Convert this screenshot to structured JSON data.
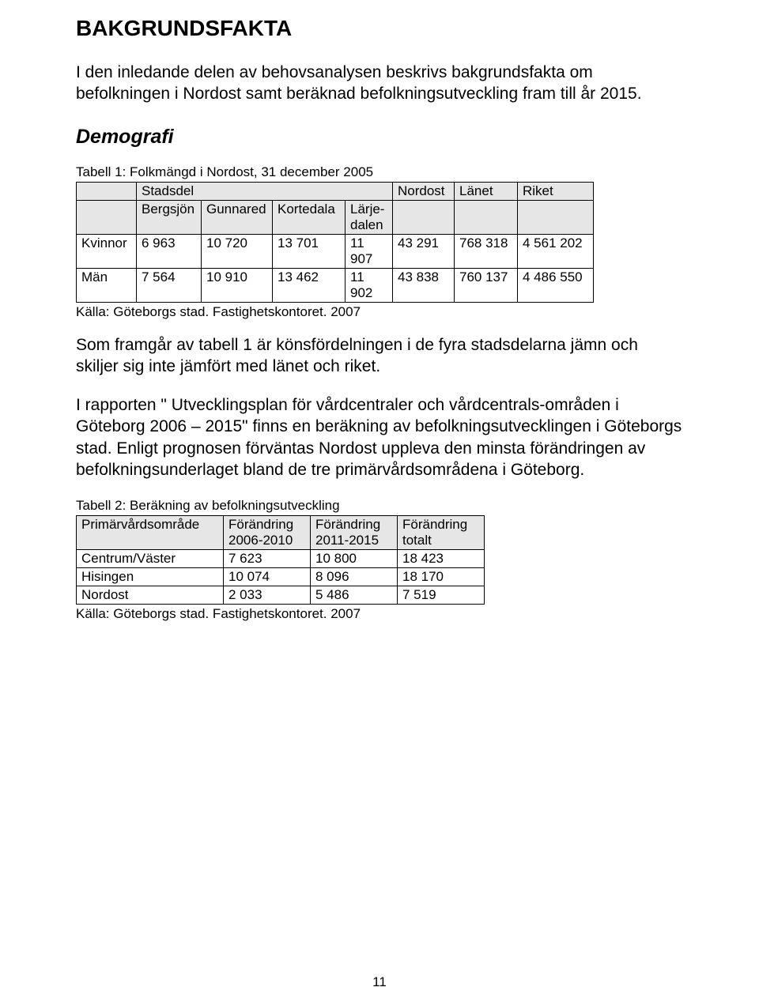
{
  "title": "BAKGRUNDSFAKTA",
  "intro": "I den inledande delen av behovsanalysen beskrivs bakgrundsfakta om befolkningen i Nordost samt beräknad befolkningsutveckling fram till år 2015.",
  "section_demografi": "Demografi",
  "table1": {
    "caption": "Tabell 1: Folkmängd i Nordost, 31 december 2005",
    "header_top": {
      "stadsdel": "Stadsdel",
      "nordost": "Nordost",
      "lanet": "Länet",
      "riket": "Riket"
    },
    "header_sub": {
      "bergsjon": "Bergsjön",
      "gunnared": "Gunnared",
      "kortedala": "Kortedala",
      "larjedalen": "Lärje-\ndalen"
    },
    "rows": [
      {
        "label": "Kvinnor",
        "c1": "6 963",
        "c2": "10 720",
        "c3": "13 701",
        "c4": "11 907",
        "c5": "43 291",
        "c6": "768 318",
        "c7": "4 561 202"
      },
      {
        "label": "Män",
        "c1": "7 564",
        "c2": "10 910",
        "c3": "13 462",
        "c4": "11 902",
        "c5": "43 838",
        "c6": "760 137",
        "c7": "4 486 550"
      }
    ],
    "source": "Källa: Göteborgs stad. Fastighetskontoret. 2007"
  },
  "para1": "Som framgår av tabell 1 är könsfördelningen i de fyra stadsdelarna jämn och skiljer sig inte jämfört med länet och riket.",
  "para2": "I rapporten \" Utvecklingsplan för vårdcentraler och vårdcentrals-områden i Göteborg 2006 – 2015\" finns en beräkning av befolkningsutvecklingen i Göteborgs stad. Enligt prognosen förväntas Nordost uppleva den minsta förändringen av befolkningsunderlaget bland de tre primärvårdsområdena i Göteborg.",
  "table2": {
    "caption": "Tabell 2: Beräkning av befolkningsutveckling",
    "columns": [
      "Primärvårdsområde",
      "Förändring 2006-2010",
      "Förändring 2011-2015",
      "Förändring totalt"
    ],
    "col_line1": [
      "Primärvårdsområde",
      "Förändring",
      "Förändring",
      "Förändring"
    ],
    "col_line2": [
      "",
      "2006-2010",
      "2011-2015",
      "totalt"
    ],
    "rows": [
      {
        "c0": "Centrum/Väster",
        "c1": "7 623",
        "c2": "10 800",
        "c3": "18 423"
      },
      {
        "c0": "Hisingen",
        "c1": "10 074",
        "c2": "8 096",
        "c3": "18 170"
      },
      {
        "c0": "Nordost",
        "c1": "2 033",
        "c2": "5 486",
        "c3": "7 519"
      }
    ],
    "source": "Källa: Göteborgs stad. Fastighetskontoret. 2007"
  },
  "page_number": "11"
}
